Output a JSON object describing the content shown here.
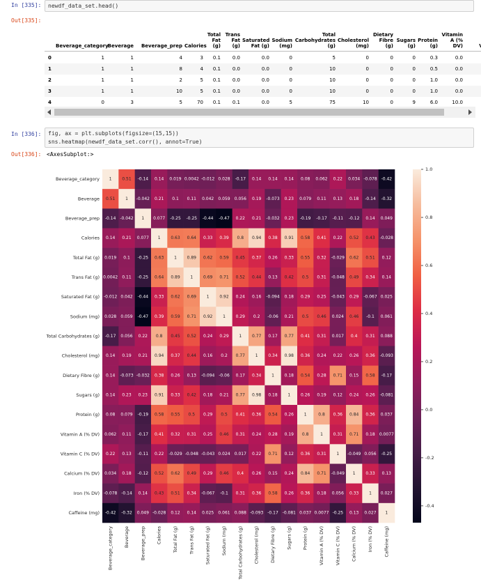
{
  "cells": [
    {
      "prompt": "In [335]:",
      "code": [
        "newdf_data_set.head()"
      ],
      "out_prompt": "Out[335]:"
    },
    {
      "prompt": "In [336]:",
      "code": [
        "fig, ax = plt.subplots(figsize=(15,15))",
        "sns.heatmap(newdf_data_set.corr(), annot=True)"
      ],
      "out_prompt": "Out[336]:",
      "output_text": "<AxesSubplot:>"
    }
  ],
  "table": {
    "columns": [
      "Beverage_category",
      "Beverage",
      "Beverage_prep",
      "Calories",
      "Total Fat (g)",
      "Trans Fat (g)",
      "Saturated Fat (g)",
      "Sodium (mg)",
      "Total Carbohydrates (g)",
      "Cholesterol (mg)",
      "Dietary Fibre (g)",
      "Sugars (g)",
      "Protein (g)",
      "Vitamin A (% DV)",
      "Vita"
    ],
    "index": [
      "0",
      "1",
      "2",
      "3",
      "4"
    ],
    "rows": [
      [
        "1",
        "1",
        "4",
        "3",
        "0.1",
        "0.0",
        "0.0",
        "0",
        "5",
        "0",
        "0",
        "0",
        "0.3",
        "0.0"
      ],
      [
        "1",
        "1",
        "8",
        "4",
        "0.1",
        "0.0",
        "0.0",
        "0",
        "10",
        "0",
        "0",
        "0",
        "0.5",
        "0.0"
      ],
      [
        "1",
        "1",
        "2",
        "5",
        "0.1",
        "0.0",
        "0.0",
        "0",
        "10",
        "0",
        "0",
        "0",
        "1.0",
        "0.0"
      ],
      [
        "1",
        "1",
        "10",
        "5",
        "0.1",
        "0.0",
        "0.0",
        "0",
        "10",
        "0",
        "0",
        "0",
        "1.0",
        "0.0"
      ],
      [
        "0",
        "3",
        "5",
        "70",
        "0.1",
        "0.1",
        "0.0",
        "5",
        "75",
        "10",
        "0",
        "9",
        "6.0",
        "10.0"
      ]
    ]
  },
  "chart_data": {
    "type": "heatmap",
    "colormap": "rocket",
    "categories": [
      "Beverage_category",
      "Beverage",
      "Beverage_prep",
      "Calories",
      "Total Fat (g)",
      "Trans Fat (g)",
      "Saturated Fat (g)",
      "Sodium (mg)",
      "Total Carbohydrates (g)",
      "Cholesterol (mg)",
      "Dietary Fibre (g)",
      "Sugars (g)",
      "Protein (g)",
      "Vitamin A (% DV)",
      "Vitamin C (% DV)",
      "Calcium (% DV)",
      "Iron (% DV)",
      "Caffeine (mg)"
    ],
    "values": [
      [
        1,
        0.51,
        -0.14,
        0.14,
        0.019,
        0.0042,
        -0.012,
        0.028,
        -0.17,
        0.14,
        0.14,
        0.14,
        0.08,
        0.062,
        0.22,
        0.034,
        -0.078,
        -0.42
      ],
      [
        0.51,
        1,
        -0.042,
        0.21,
        0.1,
        0.11,
        0.042,
        0.059,
        0.056,
        0.19,
        -0.073,
        0.23,
        0.079,
        0.11,
        0.13,
        0.18,
        -0.14,
        -0.32
      ],
      [
        -0.14,
        -0.042,
        1,
        0.077,
        -0.25,
        -0.25,
        -0.44,
        -0.47,
        0.22,
        0.21,
        -0.032,
        0.23,
        -0.19,
        -0.17,
        -0.11,
        -0.12,
        0.14,
        0.049
      ],
      [
        0.14,
        0.21,
        0.077,
        1,
        0.63,
        0.64,
        0.33,
        0.39,
        0.8,
        0.94,
        0.38,
        0.91,
        0.58,
        0.41,
        0.22,
        0.52,
        0.43,
        -0.028
      ],
      [
        0.019,
        0.1,
        -0.25,
        0.63,
        1,
        0.89,
        0.62,
        0.59,
        0.45,
        0.37,
        0.26,
        0.33,
        0.55,
        0.32,
        -0.029,
        0.62,
        0.51,
        0.12
      ],
      [
        0.0042,
        0.11,
        -0.25,
        0.64,
        0.89,
        1,
        0.69,
        0.71,
        0.52,
        0.44,
        0.13,
        0.42,
        0.5,
        0.31,
        -0.048,
        0.49,
        0.34,
        0.14
      ],
      [
        -0.012,
        0.042,
        -0.44,
        0.33,
        0.62,
        0.69,
        1,
        0.92,
        0.24,
        0.16,
        -0.094,
        0.18,
        0.29,
        0.25,
        -0.043,
        0.29,
        -0.067,
        0.025
      ],
      [
        0.028,
        0.059,
        -0.47,
        0.39,
        0.59,
        0.71,
        0.92,
        1,
        0.29,
        0.2,
        -0.06,
        0.21,
        0.5,
        0.46,
        0.024,
        0.46,
        -0.1,
        0.061
      ],
      [
        -0.17,
        0.056,
        0.22,
        0.8,
        0.45,
        0.52,
        0.24,
        0.29,
        1,
        0.77,
        0.17,
        0.77,
        0.41,
        0.31,
        0.017,
        0.4,
        0.31,
        0.088
      ],
      [
        0.14,
        0.19,
        0.21,
        0.94,
        0.37,
        0.44,
        0.16,
        0.2,
        0.77,
        1,
        0.34,
        0.98,
        0.36,
        0.24,
        0.22,
        0.26,
        0.36,
        -0.093
      ],
      [
        0.14,
        -0.073,
        -0.032,
        0.38,
        0.26,
        0.13,
        -0.094,
        -0.06,
        0.17,
        0.34,
        1,
        0.18,
        0.54,
        0.28,
        0.71,
        0.15,
        0.58,
        -0.17
      ],
      [
        0.14,
        0.23,
        0.23,
        0.91,
        0.33,
        0.42,
        0.18,
        0.21,
        0.77,
        0.98,
        0.18,
        1,
        0.26,
        0.19,
        0.12,
        0.24,
        0.26,
        -0.081
      ],
      [
        0.08,
        0.079,
        -0.19,
        0.58,
        0.55,
        0.5,
        0.29,
        0.5,
        0.41,
        0.36,
        0.54,
        0.26,
        1,
        0.8,
        0.36,
        0.84,
        0.36,
        0.037
      ],
      [
        0.062,
        0.11,
        -0.17,
        0.41,
        0.32,
        0.31,
        0.25,
        0.46,
        0.31,
        0.24,
        0.28,
        0.19,
        0.8,
        1,
        0.31,
        0.71,
        0.18,
        0.0077
      ],
      [
        0.22,
        0.13,
        -0.11,
        0.22,
        -0.029,
        -0.048,
        -0.043,
        0.024,
        0.017,
        0.22,
        0.71,
        0.12,
        0.36,
        0.31,
        1,
        -0.049,
        0.056,
        -0.25
      ],
      [
        0.034,
        0.18,
        -0.12,
        0.52,
        0.62,
        0.49,
        0.29,
        0.46,
        0.4,
        0.26,
        0.15,
        0.24,
        0.84,
        0.71,
        -0.049,
        1,
        0.33,
        0.13
      ],
      [
        -0.078,
        -0.14,
        0.14,
        0.43,
        0.51,
        0.34,
        -0.067,
        -0.1,
        0.31,
        0.36,
        0.58,
        0.26,
        0.36,
        0.18,
        0.056,
        0.33,
        1,
        0.027
      ],
      [
        -0.42,
        -0.32,
        0.049,
        -0.028,
        0.12,
        0.14,
        0.025,
        0.061,
        0.088,
        -0.093,
        -0.17,
        -0.081,
        0.037,
        0.0077,
        -0.25,
        0.13,
        0.027,
        1
      ]
    ],
    "zlim": [
      -0.47,
      1
    ],
    "colorbar_ticks": [
      -0.4,
      -0.2,
      {
        "value": 0,
        "label": "0.0"
      },
      0.2,
      0.4,
      0.6,
      0.8,
      {
        "value": 1,
        "label": "1.0"
      }
    ]
  }
}
